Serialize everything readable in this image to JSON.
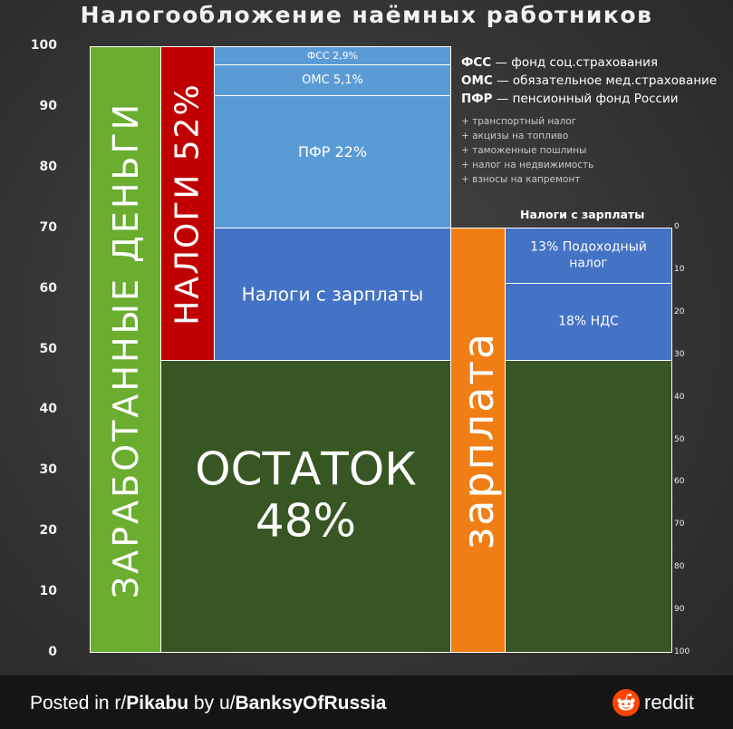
{
  "title": "Налогообложение наёмных работников",
  "chart_data": {
    "type": "bar",
    "y_ticks": [
      "0",
      "10",
      "20",
      "30",
      "40",
      "50",
      "60",
      "70",
      "80",
      "90",
      "100"
    ],
    "ylim": [
      0,
      100
    ],
    "right_axis_ticks": [
      "0",
      "10",
      "20",
      "30",
      "40",
      "50",
      "60",
      "70",
      "80",
      "90",
      "100"
    ],
    "right_axis_title": "Налоги с зарплаты",
    "columns": [
      {
        "label": "ЗАРАБОТАННЫЕ ДЕНЬГИ",
        "value": 100,
        "color": "#6aad2f"
      },
      {
        "label": "НАЛОГИ 52%",
        "value": 52,
        "color": "#c00000"
      },
      {
        "label": "ОСТАТОК",
        "value_text": "48%",
        "value": 48,
        "color": "#375623"
      },
      {
        "label": "зарплата",
        "value": 70,
        "color": "#f07e15"
      }
    ],
    "segments": [
      {
        "label": "ФСС 2,9%",
        "value": 2.9,
        "color": "#5b9bd5"
      },
      {
        "label": "ОМС 5,1%",
        "value": 5.1,
        "color": "#5b9bd5"
      },
      {
        "label": "ПФР 22%",
        "value": 22,
        "color": "#5b9bd5"
      },
      {
        "label": "Налоги с зарплаты",
        "value": 22,
        "color": "#4472c4"
      },
      {
        "label": "13% Подоходный налог",
        "value": 13,
        "color": "#4472c4"
      },
      {
        "label": "18% НДС",
        "value": 18,
        "color": "#4472c4"
      }
    ]
  },
  "legend": [
    {
      "abbr": "ФСС",
      "text": " — фонд соц.страхования"
    },
    {
      "abbr": "ОМС",
      "text": " — обязательное мед.страхование"
    },
    {
      "abbr": "ПФР",
      "text": " — пенсионный фонд России"
    }
  ],
  "extra_taxes": [
    "+ транспортный налог",
    "+ акцизы на топливо",
    "+ таможенные пошлины",
    "+ налог на недвижимость",
    "+ взносы на капремонт"
  ],
  "footer": {
    "posted_in": "Posted in r/",
    "subreddit": "Pikabu",
    "by": " by u/",
    "user": "BanksyOfRussia",
    "brand": "reddit"
  },
  "colors": {
    "green": "#6aad2f",
    "red": "#c00000",
    "dark_green": "#375623",
    "orange": "#f07e15",
    "light_blue": "#5b9bd5",
    "blue": "#4472c4"
  }
}
